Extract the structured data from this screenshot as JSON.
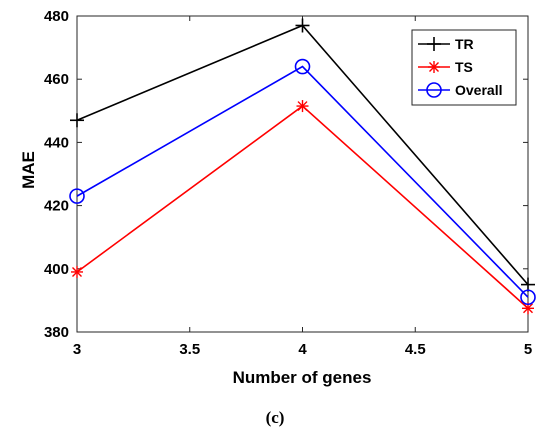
{
  "caption": "(c)",
  "chart_data": {
    "type": "line",
    "title": "",
    "xlabel": "Number of genes",
    "ylabel": "MAE",
    "xlim": [
      3,
      5
    ],
    "ylim": [
      380,
      480
    ],
    "xticks": [
      3,
      3.5,
      4,
      4.5,
      5
    ],
    "xtick_labels": [
      "3",
      "3.5",
      "4",
      "4.5",
      "5"
    ],
    "yticks": [
      380,
      400,
      420,
      440,
      460,
      480
    ],
    "ytick_labels": [
      "380",
      "400",
      "420",
      "440",
      "460",
      "480"
    ],
    "grid": false,
    "legend_position": "top-right",
    "x": [
      3,
      4,
      5
    ],
    "series": [
      {
        "name": "TR",
        "values": [
          447,
          477,
          395
        ],
        "color": "#000000",
        "marker": "plus"
      },
      {
        "name": "TS",
        "values": [
          399,
          451.5,
          387.5
        ],
        "color": "#ff0000",
        "marker": "asterisk"
      },
      {
        "name": "Overall",
        "values": [
          423,
          464,
          391
        ],
        "color": "#0000ff",
        "marker": "circle"
      }
    ]
  }
}
